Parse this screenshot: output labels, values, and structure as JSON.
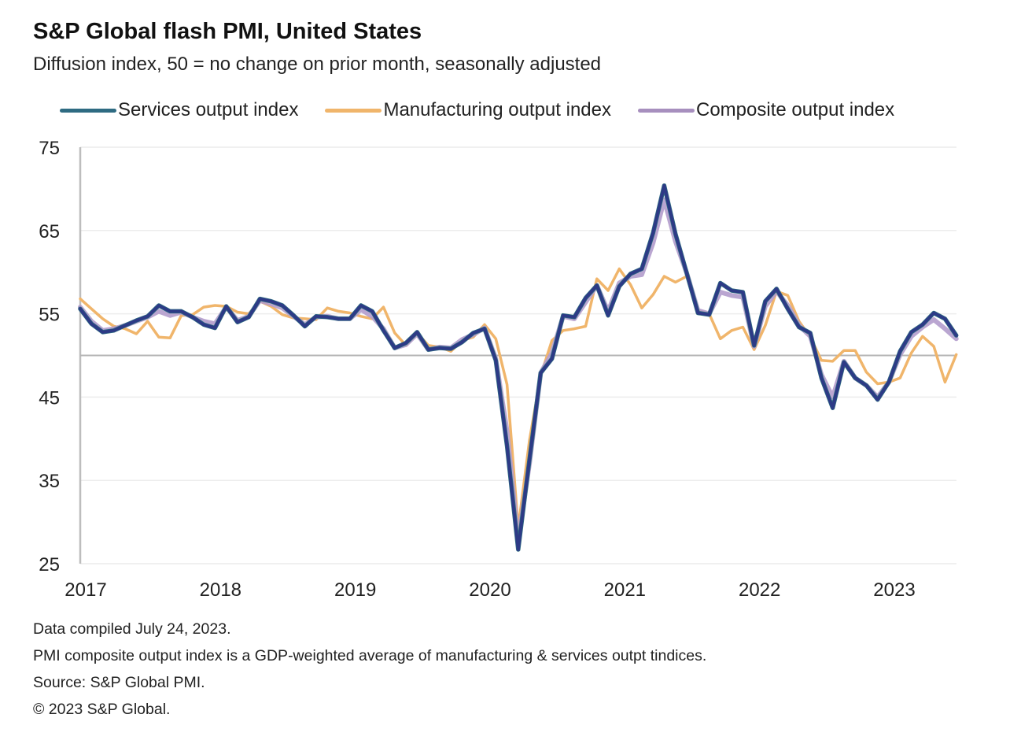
{
  "header": {
    "title": "S&P Global flash PMI, United States",
    "subtitle": "Diffusion index, 50 = no change on prior month, seasonally adjusted"
  },
  "legend": [
    {
      "label": "Services output index",
      "color": "#2e6b82"
    },
    {
      "label": "Manufacturing output index",
      "color": "#f0b56b"
    },
    {
      "label": "Composite output index",
      "color": "#a78fbe"
    }
  ],
  "footer": {
    "line1": "Data compiled July 24, 2023.",
    "line2": "PMI composite output index is a GDP-weighted average of manufacturing & services outpt tindices.",
    "line3": "Source: S&P Global PMI.",
    "line4": "© 2023 S&P Global."
  },
  "chart_data": {
    "type": "line",
    "title": "S&P Global flash PMI, United States",
    "subtitle": "Diffusion index, 50 = no change on prior month, seasonally adjusted",
    "xlabel": "",
    "ylabel": "",
    "ylim": [
      25,
      75
    ],
    "yticks": [
      25,
      35,
      45,
      55,
      65,
      75
    ],
    "reference_line": 50,
    "x_start": "2017-01",
    "x_end": "2023-07",
    "frequency": "monthly",
    "xtick_labels": [
      "2017",
      "2018",
      "2019",
      "2020",
      "2021",
      "2022",
      "2023"
    ],
    "grid": true,
    "legend_position": "top",
    "series": [
      {
        "name": "Services output index",
        "color": "#2e6b82",
        "values": [
          55.6,
          53.8,
          52.8,
          53.0,
          53.6,
          54.2,
          54.7,
          56.0,
          55.3,
          55.3,
          54.6,
          53.7,
          53.3,
          55.9,
          54.0,
          54.6,
          56.8,
          56.5,
          56.0,
          54.8,
          53.5,
          54.7,
          54.6,
          54.4,
          54.4,
          56.0,
          55.3,
          53.0,
          50.9,
          51.5,
          52.8,
          50.7,
          50.9,
          50.8,
          51.6,
          52.7,
          53.2,
          49.4,
          39.1,
          26.7,
          37.5,
          47.9,
          49.6,
          54.8,
          54.6,
          56.9,
          58.4,
          54.8,
          58.3,
          59.8,
          60.4,
          64.7,
          70.4,
          64.6,
          59.9,
          55.1,
          54.9,
          58.7,
          57.8,
          57.6,
          51.2,
          56.5,
          58.0,
          55.6,
          53.4,
          52.7,
          47.3,
          43.7,
          49.2,
          47.3,
          46.4,
          44.7,
          46.8,
          50.5,
          52.8,
          53.7,
          55.1,
          54.4,
          52.4
        ]
      },
      {
        "name": "Manufacturing output index",
        "color": "#f0b56b",
        "values": [
          56.8,
          55.6,
          54.4,
          53.5,
          53.2,
          52.6,
          54.1,
          52.2,
          52.1,
          54.8,
          54.9,
          55.8,
          56.0,
          55.9,
          55.2,
          55.0,
          56.5,
          55.9,
          54.9,
          54.5,
          54.4,
          54.3,
          55.7,
          55.3,
          55.1,
          54.7,
          54.4,
          55.8,
          52.7,
          51.2,
          52.7,
          51.2,
          51.0,
          50.5,
          51.8,
          52.2,
          53.7,
          52.0,
          46.5,
          29.3,
          39.8,
          47.6,
          51.8,
          53.0,
          53.2,
          53.5,
          59.2,
          57.8,
          60.4,
          58.5,
          55.7,
          57.3,
          59.5,
          58.8,
          59.5,
          55.4,
          55.0,
          52.0,
          53.0,
          53.4,
          50.7,
          53.6,
          57.7,
          57.2,
          54.1,
          52.2,
          49.4,
          49.3,
          50.6,
          50.6,
          48.0,
          46.6,
          46.8,
          47.3,
          50.3,
          52.3,
          51.1,
          46.8,
          50.1
        ]
      },
      {
        "name": "Composite output index",
        "color": "#a78fbe",
        "values": [
          55.8,
          54.1,
          53.0,
          53.2,
          53.6,
          54.1,
          54.6,
          55.3,
          54.8,
          55.2,
          54.6,
          54.1,
          53.8,
          55.8,
          54.2,
          54.7,
          56.6,
          56.2,
          55.7,
          54.7,
          53.7,
          54.6,
          54.7,
          54.4,
          54.4,
          55.5,
          54.7,
          53.2,
          50.9,
          51.3,
          52.6,
          50.7,
          51.0,
          50.9,
          51.9,
          52.5,
          53.3,
          49.6,
          40.9,
          27.8,
          37.0,
          47.9,
          50.3,
          54.7,
          54.4,
          56.4,
          58.4,
          55.3,
          58.7,
          59.5,
          59.7,
          63.5,
          68.7,
          63.7,
          59.9,
          55.4,
          55.0,
          57.6,
          57.2,
          57.0,
          51.1,
          55.9,
          57.7,
          56.0,
          53.6,
          52.3,
          47.7,
          45.0,
          49.3,
          47.3,
          46.4,
          45.0,
          46.8,
          50.1,
          52.3,
          53.4,
          54.3,
          53.2,
          52.0
        ]
      }
    ]
  }
}
